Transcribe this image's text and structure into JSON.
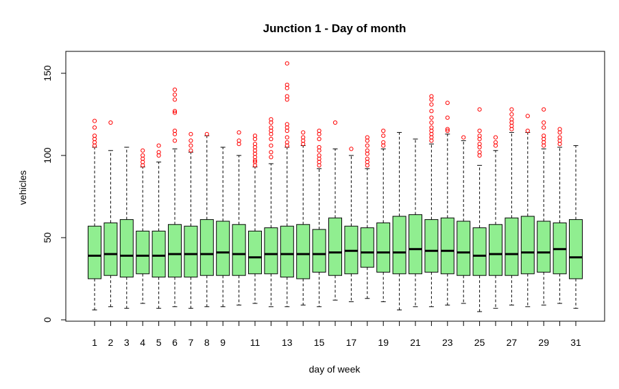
{
  "chart_data": {
    "type": "boxplot",
    "title": "Junction 1 - Day of month",
    "xlabel": "day of week",
    "ylabel": "vehicles",
    "ylim": [
      0,
      160
    ],
    "yticks": [
      0,
      50,
      100,
      150
    ],
    "xtick_labels": [
      "1",
      "2",
      "3",
      "4",
      "5",
      "6",
      "7",
      "8",
      "9",
      "11",
      "13",
      "15",
      "17",
      "19",
      "21",
      "23",
      "25",
      "27",
      "29",
      "31"
    ],
    "box_fill": "#90ee90",
    "outlier_color": "#ff0000",
    "categories": [
      "1",
      "2",
      "3",
      "4",
      "5",
      "6",
      "7",
      "8",
      "9",
      "10",
      "11",
      "12",
      "13",
      "14",
      "15",
      "16",
      "17",
      "18",
      "19",
      "20",
      "21",
      "22",
      "23",
      "24",
      "25",
      "26",
      "27",
      "28",
      "29",
      "30",
      "31"
    ],
    "boxes": [
      {
        "day": "1",
        "min": 6,
        "q1": 25,
        "median": 39,
        "q3": 57,
        "max": 105,
        "outliers": [
          106,
          108,
          110,
          112,
          117,
          121
        ]
      },
      {
        "day": "2",
        "min": 8,
        "q1": 27,
        "median": 40,
        "q3": 59,
        "max": 103,
        "outliers": [
          120
        ]
      },
      {
        "day": "3",
        "min": 7,
        "q1": 26,
        "median": 39,
        "q3": 61,
        "max": 105,
        "outliers": []
      },
      {
        "day": "4",
        "min": 10,
        "q1": 28,
        "median": 39,
        "q3": 54,
        "max": 93,
        "outliers": [
          94,
          96,
          98,
          100,
          103
        ]
      },
      {
        "day": "5",
        "min": 7,
        "q1": 26,
        "median": 39,
        "q3": 54,
        "max": 96,
        "outliers": [
          100,
          102,
          106
        ]
      },
      {
        "day": "6",
        "min": 8,
        "q1": 26,
        "median": 40,
        "q3": 58,
        "max": 104,
        "outliers": [
          109,
          113,
          115,
          126,
          127,
          134,
          137,
          140
        ]
      },
      {
        "day": "7",
        "min": 7,
        "q1": 26,
        "median": 40,
        "q3": 57,
        "max": 102,
        "outliers": [
          103,
          106,
          109,
          113
        ]
      },
      {
        "day": "8",
        "min": 8,
        "q1": 27,
        "median": 40,
        "q3": 61,
        "max": 112,
        "outliers": [
          113
        ]
      },
      {
        "day": "9",
        "min": 8,
        "q1": 27,
        "median": 41,
        "q3": 60,
        "max": 105,
        "outliers": []
      },
      {
        "day": "10",
        "min": 9,
        "q1": 27,
        "median": 40,
        "q3": 58,
        "max": 100,
        "outliers": [
          107,
          109,
          114
        ]
      },
      {
        "day": "11",
        "min": 10,
        "q1": 28,
        "median": 38,
        "q3": 54,
        "max": 93,
        "outliers": [
          94,
          96,
          97,
          99,
          101,
          103,
          105,
          107,
          110,
          112
        ]
      },
      {
        "day": "12",
        "min": 8,
        "q1": 28,
        "median": 40,
        "q3": 56,
        "max": 95,
        "outliers": [
          99,
          102,
          106,
          110,
          113,
          115,
          117,
          120,
          122
        ]
      },
      {
        "day": "13",
        "min": 8,
        "q1": 26,
        "median": 40,
        "q3": 57,
        "max": 105,
        "outliers": [
          106,
          108,
          111,
          115,
          117,
          119,
          134,
          136,
          141,
          143,
          156
        ]
      },
      {
        "day": "14",
        "min": 9,
        "q1": 25,
        "median": 40,
        "q3": 58,
        "max": 106,
        "outliers": [
          107,
          109,
          111,
          114
        ]
      },
      {
        "day": "15",
        "min": 8,
        "q1": 29,
        "median": 40,
        "q3": 55,
        "max": 92,
        "outliers": [
          94,
          96,
          98,
          100,
          103,
          105,
          110,
          113,
          115
        ]
      },
      {
        "day": "16",
        "min": 12,
        "q1": 27,
        "median": 41,
        "q3": 62,
        "max": 104,
        "outliers": [
          120
        ]
      },
      {
        "day": "17",
        "min": 11,
        "q1": 28,
        "median": 42,
        "q3": 57,
        "max": 100,
        "outliers": [
          104
        ]
      },
      {
        "day": "18",
        "min": 13,
        "q1": 32,
        "median": 41,
        "q3": 56,
        "max": 92,
        "outliers": [
          94,
          96,
          98,
          101,
          103,
          106,
          109,
          111
        ]
      },
      {
        "day": "19",
        "min": 11,
        "q1": 29,
        "median": 41,
        "q3": 59,
        "max": 104,
        "outliers": [
          106,
          108,
          112,
          115
        ]
      },
      {
        "day": "20",
        "min": 6,
        "q1": 28,
        "median": 41,
        "q3": 63,
        "max": 114,
        "outliers": []
      },
      {
        "day": "21",
        "min": 8,
        "q1": 28,
        "median": 43,
        "q3": 64,
        "max": 110,
        "outliers": []
      },
      {
        "day": "22",
        "min": 8,
        "q1": 29,
        "median": 42,
        "q3": 61,
        "max": 107,
        "outliers": [
          109,
          111,
          113,
          115,
          117,
          120,
          123,
          127,
          131,
          134,
          136
        ]
      },
      {
        "day": "23",
        "min": 9,
        "q1": 28,
        "median": 42,
        "q3": 62,
        "max": 113,
        "outliers": [
          115,
          116,
          123,
          132
        ]
      },
      {
        "day": "24",
        "min": 10,
        "q1": 27,
        "median": 41,
        "q3": 60,
        "max": 109,
        "outliers": [
          111
        ]
      },
      {
        "day": "25",
        "min": 5,
        "q1": 27,
        "median": 39,
        "q3": 56,
        "max": 94,
        "outliers": [
          100,
          102,
          105,
          107,
          110,
          112,
          115,
          128
        ]
      },
      {
        "day": "26",
        "min": 7,
        "q1": 27,
        "median": 40,
        "q3": 58,
        "max": 103,
        "outliers": [
          106,
          108,
          111
        ]
      },
      {
        "day": "27",
        "min": 9,
        "q1": 27,
        "median": 40,
        "q3": 62,
        "max": 114,
        "outliers": [
          116,
          118,
          120,
          122,
          125,
          128
        ]
      },
      {
        "day": "28",
        "min": 8,
        "q1": 28,
        "median": 41,
        "q3": 63,
        "max": 114,
        "outliers": [
          115,
          124
        ]
      },
      {
        "day": "29",
        "min": 9,
        "q1": 29,
        "median": 41,
        "q3": 60,
        "max": 104,
        "outliers": [
          106,
          108,
          110,
          112,
          117,
          120,
          128
        ]
      },
      {
        "day": "30",
        "min": 10,
        "q1": 28,
        "median": 43,
        "q3": 59,
        "max": 105,
        "outliers": [
          107,
          109,
          111,
          114,
          116
        ]
      },
      {
        "day": "31",
        "min": 7,
        "q1": 25,
        "median": 38,
        "q3": 61,
        "max": 106,
        "outliers": []
      }
    ]
  }
}
